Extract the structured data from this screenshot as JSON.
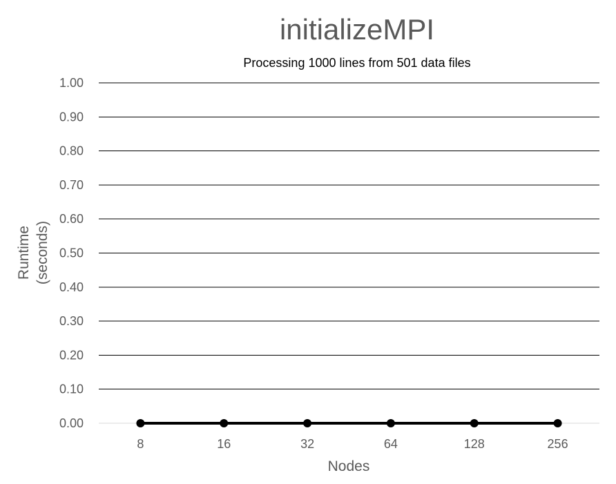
{
  "chart_data": {
    "type": "line",
    "title": "initializeMPI",
    "subtitle": "Processing 1000 lines from 501 data files",
    "xlabel": "Nodes",
    "ylabel_lines": [
      "Runtime",
      "(seconds)"
    ],
    "categories": [
      "8",
      "16",
      "32",
      "64",
      "128",
      "256"
    ],
    "series": [
      {
        "values": [
          0,
          0,
          0,
          0,
          0,
          0
        ]
      }
    ],
    "ylim": [
      0,
      1
    ],
    "yticks": [
      0.0,
      0.1,
      0.2,
      0.3,
      0.4,
      0.5,
      0.6,
      0.7,
      0.8,
      0.9,
      1.0
    ],
    "ytick_decimals": 2,
    "grid": true,
    "legend": "none",
    "colors": {
      "line": "#000000",
      "marker": "#000000",
      "grid": "#000000",
      "baseline": "#d9d9d9",
      "text": "#595959"
    }
  }
}
